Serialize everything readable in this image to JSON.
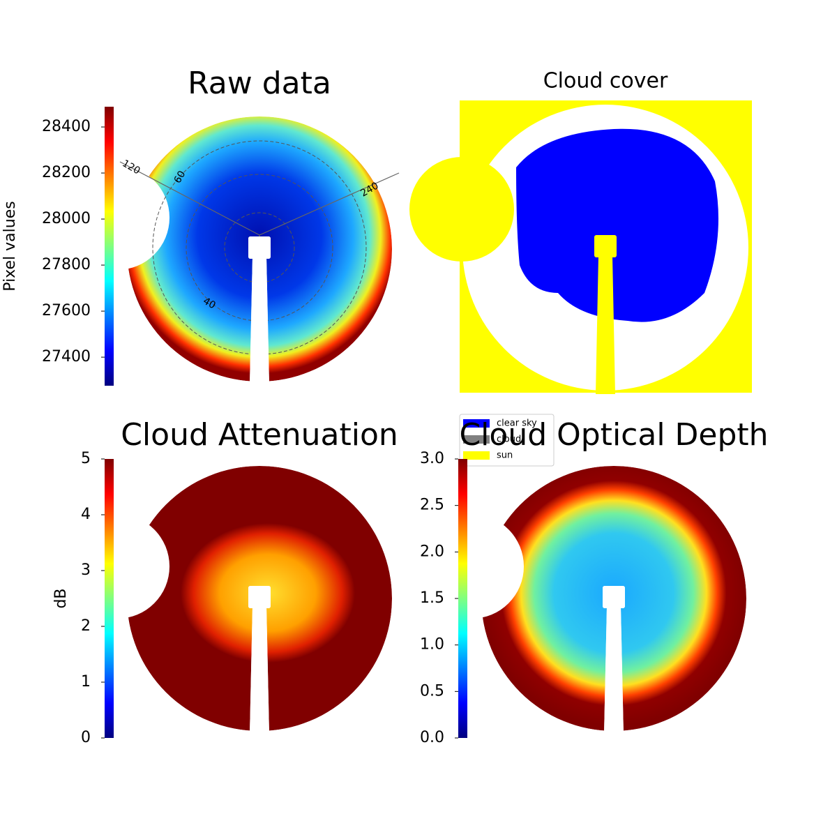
{
  "chart_data": [
    {
      "type": "image",
      "title": "Raw data",
      "ylabel": "Pixel values",
      "colormap": "jet",
      "ylim": [
        27276,
        28488
      ],
      "yticks": [
        27400,
        27600,
        27800,
        28000,
        28200,
        28400
      ],
      "annotations": [
        "120",
        "60",
        "240",
        "40"
      ]
    },
    {
      "type": "mask",
      "title": "Cloud cover",
      "series": [
        {
          "name": "clear sky",
          "color": "#0000ff"
        },
        {
          "name": "cloud",
          "color": "#808080"
        },
        {
          "name": "sun",
          "color": "#ffff00"
        }
      ]
    },
    {
      "type": "image",
      "title": "Cloud Attenuation",
      "ylabel": "dB",
      "colormap": "jet",
      "ylim": [
        0,
        5
      ],
      "yticks": [
        0,
        1,
        2,
        3,
        4,
        5
      ]
    },
    {
      "type": "image",
      "title": "Cloud Optical Depth",
      "colormap": "jet",
      "ylim": [
        0,
        3
      ],
      "yticks": [
        {
          "value": 0,
          "label": "0.0"
        },
        {
          "value": 0.5,
          "label": "0.5"
        },
        {
          "value": 1,
          "label": "1.0"
        },
        {
          "value": 1.5,
          "label": "1.5"
        },
        {
          "value": 2,
          "label": "2.0"
        },
        {
          "value": 2.5,
          "label": "2.5"
        },
        {
          "value": 3,
          "label": "3.0"
        }
      ]
    }
  ]
}
